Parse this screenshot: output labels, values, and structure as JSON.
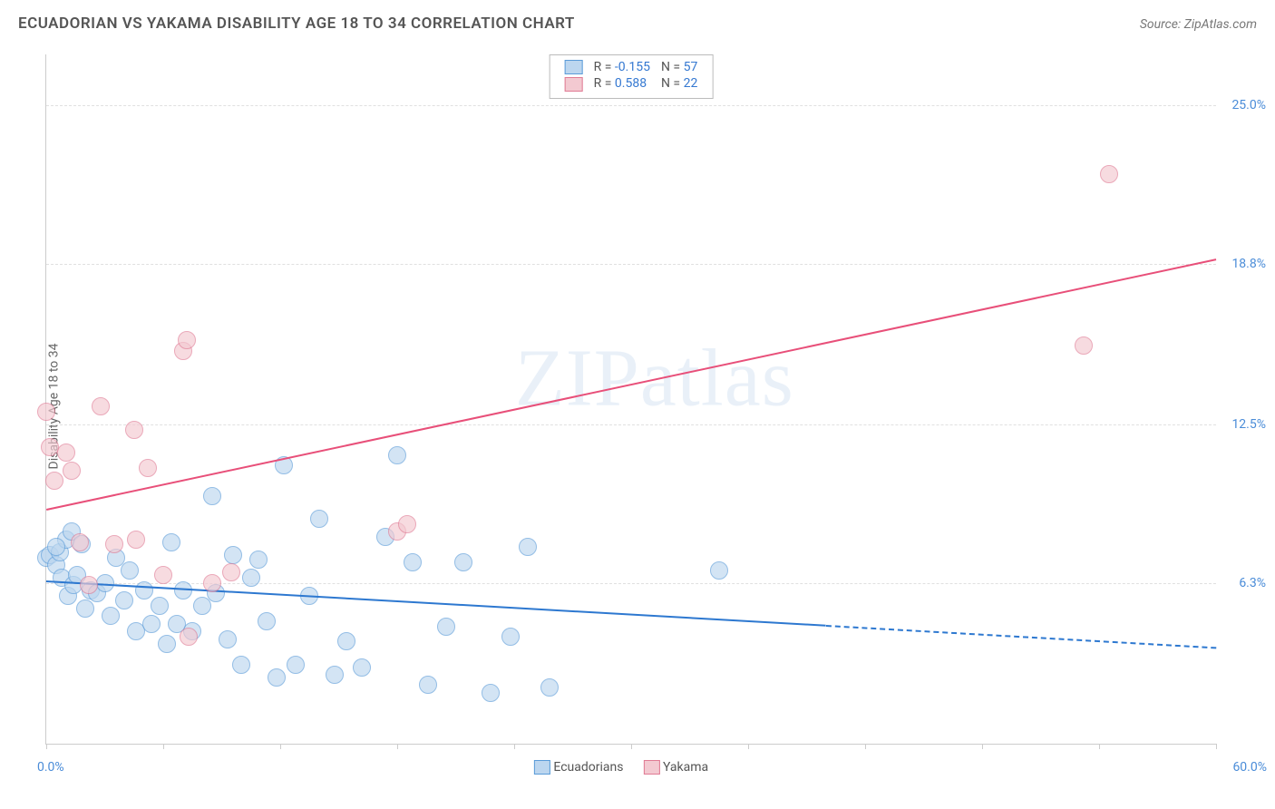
{
  "title": "ECUADORIAN VS YAKAMA DISABILITY AGE 18 TO 34 CORRELATION CHART",
  "source": "Source: ZipAtlas.com",
  "ylabel": "Disability Age 18 to 34",
  "watermark": "ZIPatlas",
  "chart": {
    "type": "scatter",
    "xlim": [
      0,
      60
    ],
    "ylim": [
      0,
      27
    ],
    "xticks": [
      0,
      6,
      12,
      18,
      24,
      30,
      36,
      42,
      48,
      54,
      60
    ],
    "yticks": [
      6.3,
      12.5,
      18.8,
      25.0
    ],
    "ytick_labels": [
      "6.3%",
      "12.5%",
      "18.8%",
      "25.0%"
    ],
    "xlabel_min": "0.0%",
    "xlabel_max": "60.0%",
    "background_color": "#ffffff",
    "grid_color": "#e0e0e0",
    "axis_color": "#cccccc",
    "tick_label_color": "#4a8cd8",
    "series": {
      "ecuadorians": {
        "label": "Ecuadorians",
        "fill": "#bcd6ef",
        "fill_opacity": 0.65,
        "stroke": "#5a9bd8",
        "marker_radius": 9,
        "trend": {
          "color": "#2d78d0",
          "x0": 0,
          "y0": 6.4,
          "x1": 60,
          "y1": 3.8,
          "solid_until_x": 40
        },
        "stats": {
          "R": "-0.155",
          "N": "57"
        },
        "points": [
          [
            0.0,
            7.3
          ],
          [
            0.2,
            7.4
          ],
          [
            0.5,
            7.0
          ],
          [
            0.7,
            7.5
          ],
          [
            0.8,
            6.5
          ],
          [
            1.0,
            8.0
          ],
          [
            1.1,
            5.8
          ],
          [
            1.3,
            8.3
          ],
          [
            1.4,
            6.2
          ],
          [
            1.6,
            6.6
          ],
          [
            1.8,
            7.8
          ],
          [
            2.0,
            5.3
          ],
          [
            2.3,
            6.0
          ],
          [
            2.6,
            5.9
          ],
          [
            3.0,
            6.3
          ],
          [
            3.3,
            5.0
          ],
          [
            3.6,
            7.3
          ],
          [
            4.0,
            5.6
          ],
          [
            4.3,
            6.8
          ],
          [
            4.6,
            4.4
          ],
          [
            5.0,
            6.0
          ],
          [
            5.4,
            4.7
          ],
          [
            5.8,
            5.4
          ],
          [
            6.2,
            3.9
          ],
          [
            6.4,
            7.9
          ],
          [
            6.7,
            4.7
          ],
          [
            7.0,
            6.0
          ],
          [
            7.5,
            4.4
          ],
          [
            8.0,
            5.4
          ],
          [
            8.5,
            9.7
          ],
          [
            8.7,
            5.9
          ],
          [
            9.3,
            4.1
          ],
          [
            9.6,
            7.4
          ],
          [
            10.0,
            3.1
          ],
          [
            10.5,
            6.5
          ],
          [
            10.9,
            7.2
          ],
          [
            11.3,
            4.8
          ],
          [
            11.8,
            2.6
          ],
          [
            12.2,
            10.9
          ],
          [
            12.8,
            3.1
          ],
          [
            13.5,
            5.8
          ],
          [
            14.0,
            8.8
          ],
          [
            14.8,
            2.7
          ],
          [
            15.4,
            4.0
          ],
          [
            16.2,
            3.0
          ],
          [
            17.4,
            8.1
          ],
          [
            18.0,
            11.3
          ],
          [
            18.8,
            7.1
          ],
          [
            19.6,
            2.3
          ],
          [
            20.5,
            4.6
          ],
          [
            21.4,
            7.1
          ],
          [
            22.8,
            2.0
          ],
          [
            23.8,
            4.2
          ],
          [
            24.7,
            7.7
          ],
          [
            25.8,
            2.2
          ],
          [
            34.5,
            6.8
          ],
          [
            0.5,
            7.7
          ]
        ]
      },
      "yakama": {
        "label": "Yakama",
        "fill": "#f3c9d1",
        "fill_opacity": 0.65,
        "stroke": "#e07b94",
        "marker_radius": 9,
        "trend": {
          "color": "#e84f79",
          "x0": 0,
          "y0": 9.2,
          "x1": 60,
          "y1": 19.0,
          "solid_until_x": 60
        },
        "stats": {
          "R": "0.588",
          "N": "22"
        },
        "points": [
          [
            0.0,
            13.0
          ],
          [
            0.2,
            11.6
          ],
          [
            0.4,
            10.3
          ],
          [
            1.0,
            11.4
          ],
          [
            1.3,
            10.7
          ],
          [
            1.7,
            7.9
          ],
          [
            2.2,
            6.2
          ],
          [
            2.8,
            13.2
          ],
          [
            3.5,
            7.8
          ],
          [
            4.5,
            12.3
          ],
          [
            4.6,
            8.0
          ],
          [
            5.2,
            10.8
          ],
          [
            6.0,
            6.6
          ],
          [
            7.0,
            15.4
          ],
          [
            7.2,
            15.8
          ],
          [
            7.3,
            4.2
          ],
          [
            8.5,
            6.3
          ],
          [
            9.5,
            6.7
          ],
          [
            18.0,
            8.3
          ],
          [
            18.5,
            8.6
          ],
          [
            53.2,
            15.6
          ],
          [
            54.5,
            22.3
          ]
        ]
      }
    }
  },
  "legend_top": {
    "rows": [
      {
        "swatch_fill": "#bcd6ef",
        "swatch_border": "#5a9bd8",
        "R": "-0.155",
        "N": "57"
      },
      {
        "swatch_fill": "#f3c9d1",
        "swatch_border": "#e07b94",
        "R": "0.588",
        "N": "22"
      }
    ]
  },
  "legend_bottom": [
    {
      "swatch_fill": "#bcd6ef",
      "swatch_border": "#5a9bd8",
      "label": "Ecuadorians"
    },
    {
      "swatch_fill": "#f3c9d1",
      "swatch_border": "#e07b94",
      "label": "Yakama"
    }
  ]
}
